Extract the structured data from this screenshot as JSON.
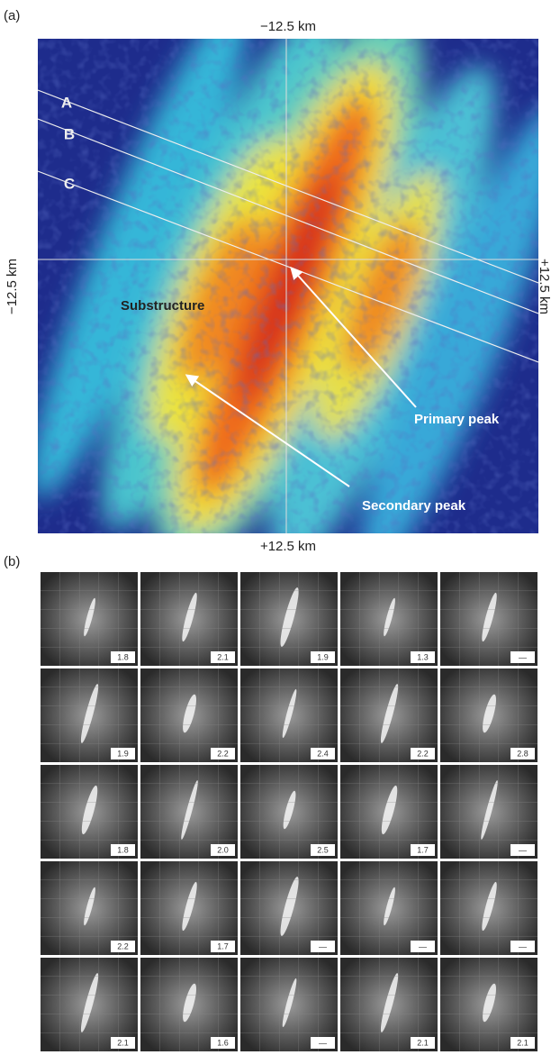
{
  "panel_a": {
    "label": "(a)",
    "top": "−12.5 km",
    "bottom": "+12.5 km",
    "left": "−12.5 km",
    "right": "+12.5 km",
    "lines": [
      "A",
      "B",
      "C"
    ],
    "substructure": "Substructure",
    "primary": "Primary peak",
    "secondary": "Secondary peak"
  },
  "panel_b": {
    "label": "(b)",
    "tiles": [
      [
        "1.8",
        "2.1",
        "1.9",
        "1.3",
        "—"
      ],
      [
        "1.9",
        "2.2",
        "2.4",
        "2.2",
        "2.8"
      ],
      [
        "1.8",
        "2.0",
        "2.5",
        "1.7",
        "—"
      ],
      [
        "2.2",
        "1.7",
        "—",
        "—",
        "—"
      ],
      [
        "2.1",
        "1.6",
        "—",
        "2.1",
        "2.1"
      ]
    ]
  }
}
